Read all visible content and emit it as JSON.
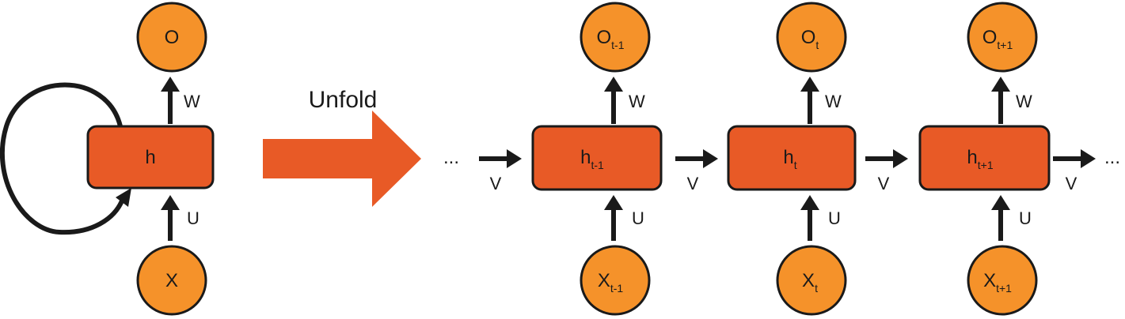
{
  "folded": {
    "output": {
      "base": "O",
      "sub": ""
    },
    "hidden": {
      "base": "h",
      "sub": ""
    },
    "input": {
      "base": "X",
      "sub": ""
    },
    "weights": {
      "w": "W",
      "u": "U"
    }
  },
  "unfold_label": "Unfold",
  "ellipsis": "...",
  "recurrent_label": "V",
  "steps": [
    {
      "output": {
        "base": "O",
        "sub": "t-1"
      },
      "hidden": {
        "base": "h",
        "sub": "t-1"
      },
      "input": {
        "base": "X",
        "sub": "t-1"
      },
      "w": "W",
      "u": "U"
    },
    {
      "output": {
        "base": "O",
        "sub": "t"
      },
      "hidden": {
        "base": "h",
        "sub": "t"
      },
      "input": {
        "base": "X",
        "sub": "t"
      },
      "w": "W",
      "u": "U"
    },
    {
      "output": {
        "base": "O",
        "sub": "t+1"
      },
      "hidden": {
        "base": "h",
        "sub": "t+1"
      },
      "input": {
        "base": "X",
        "sub": "t+1"
      },
      "w": "W",
      "u": "U"
    }
  ],
  "colors": {
    "node_circle": "#F5922A",
    "node_rect": "#E85A26",
    "big_arrow": "#E85A26",
    "stroke": "#1a1a1a"
  }
}
